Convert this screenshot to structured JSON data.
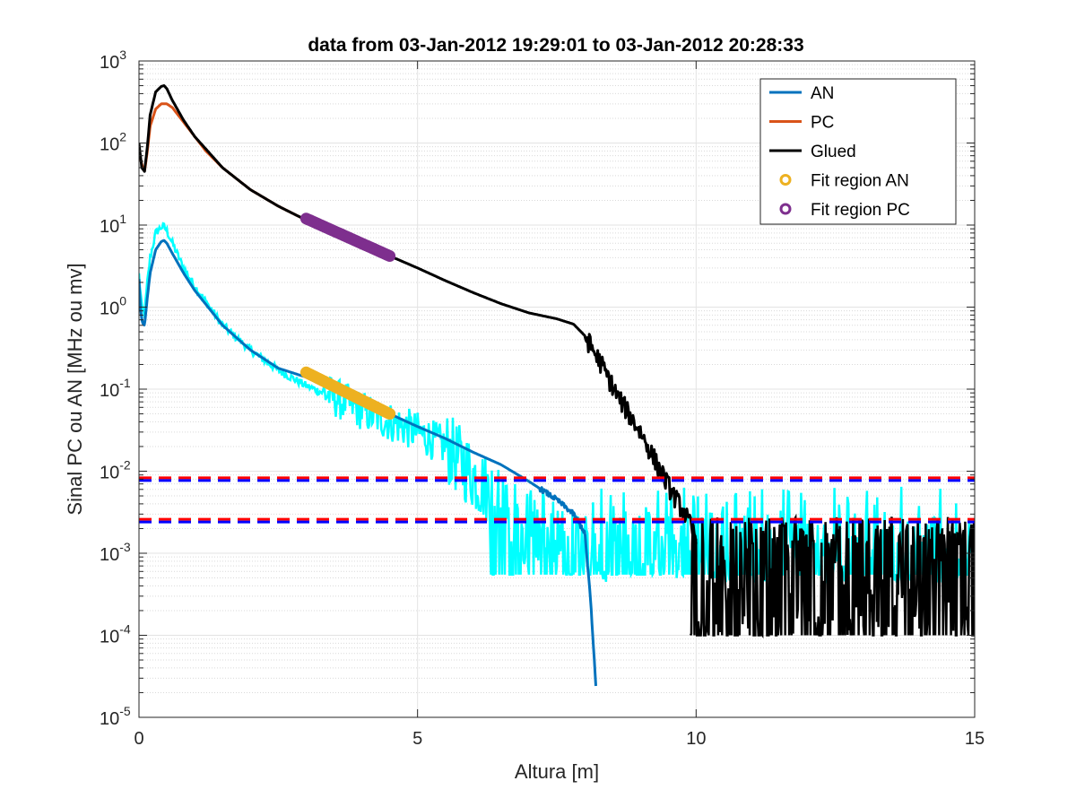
{
  "chart_data": {
    "type": "line",
    "title": "data from 03-Jan-2012 19:29:01 to 03-Jan-2012 20:28:33",
    "xlabel": "Altura [m]",
    "ylabel": "Sinal PC ou AN [MHz ou mv]",
    "xlim": [
      0,
      15
    ],
    "ylim": [
      1e-05,
      1000
    ],
    "yscale": "log",
    "grid": true,
    "minor_grid": true,
    "legend_position": "top-right",
    "x_ticks": [
      {
        "value": 0,
        "label": "0"
      },
      {
        "value": 5,
        "label": "5"
      },
      {
        "value": 10,
        "label": "10"
      },
      {
        "value": 15,
        "label": "15"
      }
    ],
    "y_ticks": [
      {
        "value": 1e-05,
        "base": "10",
        "exp": "-5"
      },
      {
        "value": 0.0001,
        "base": "10",
        "exp": "-4"
      },
      {
        "value": 0.001,
        "base": "10",
        "exp": "-3"
      },
      {
        "value": 0.01,
        "base": "10",
        "exp": "-2"
      },
      {
        "value": 0.1,
        "base": "10",
        "exp": "-1"
      },
      {
        "value": 1,
        "base": "10",
        "exp": "0"
      },
      {
        "value": 10,
        "base": "10",
        "exp": "1"
      },
      {
        "value": 100,
        "base": "10",
        "exp": "2"
      },
      {
        "value": 1000,
        "base": "10",
        "exp": "3"
      }
    ],
    "series": [
      {
        "name": "PC",
        "color": "#D95319",
        "style": "line",
        "x": [
          0.0,
          0.05,
          0.1,
          0.15,
          0.2,
          0.3,
          0.4,
          0.5,
          0.6,
          0.8,
          1.0,
          1.2,
          1.5,
          2.0,
          2.5,
          3.0,
          3.5,
          4.0,
          4.5
        ],
        "y": [
          80,
          55,
          45,
          80,
          160,
          260,
          300,
          300,
          270,
          180,
          120,
          80,
          50,
          27,
          17,
          11.5,
          8,
          5.5,
          4.2
        ]
      },
      {
        "name": "Glued",
        "color": "#000000",
        "style": "line",
        "x": [
          0.0,
          0.05,
          0.1,
          0.15,
          0.2,
          0.3,
          0.4,
          0.45,
          0.5,
          0.6,
          0.8,
          1.0,
          1.5,
          2.0,
          2.5,
          3.0,
          3.5,
          4.0,
          4.5,
          5.0,
          5.5,
          6.0,
          6.5,
          7.0,
          7.5,
          7.8,
          8.0,
          8.3,
          8.6,
          9.0,
          9.3,
          9.6,
          9.8,
          10.0
        ],
        "y": [
          100,
          50,
          45,
          90,
          220,
          420,
          490,
          500,
          460,
          330,
          190,
          120,
          50,
          27,
          17,
          11.5,
          8,
          5.5,
          4.2,
          3.0,
          2.1,
          1.5,
          1.1,
          0.85,
          0.72,
          0.62,
          0.45,
          0.2,
          0.08,
          0.03,
          0.012,
          0.005,
          0.003,
          0.0015
        ]
      },
      {
        "name": "AN",
        "color": "#0072BD",
        "style": "line",
        "x": [
          0.0,
          0.03,
          0.06,
          0.1,
          0.15,
          0.2,
          0.3,
          0.4,
          0.45,
          0.5,
          0.6,
          0.8,
          1.0,
          1.5,
          2.0,
          2.5,
          3.0,
          3.5,
          4.0,
          4.5,
          5.0,
          5.5,
          6.0,
          6.5,
          7.0,
          7.5,
          7.8,
          8.0,
          8.1,
          8.2
        ],
        "y": [
          2.2,
          0.9,
          0.65,
          0.6,
          1.3,
          2.6,
          5.0,
          6.3,
          6.5,
          6.0,
          4.5,
          2.6,
          1.6,
          0.6,
          0.3,
          0.18,
          0.14,
          0.1,
          0.07,
          0.05,
          0.035,
          0.025,
          0.017,
          0.012,
          0.0075,
          0.0045,
          0.003,
          0.0018,
          0.0003,
          2.5e-05
        ]
      },
      {
        "name": "",
        "color": "#00FFFF",
        "style": "noisy",
        "x": [
          0.0,
          0.05,
          0.1,
          0.15,
          0.2,
          0.3,
          0.4,
          0.45,
          0.5,
          0.6,
          0.8,
          1.0,
          1.5,
          2.0,
          2.5,
          3.0,
          3.5,
          4.0,
          4.5,
          5.0,
          5.5,
          6.0,
          6.5,
          7.0,
          7.5,
          8.0,
          9.0,
          10.0,
          11.0,
          12.0,
          13.0,
          14.0,
          15.0
        ],
        "y": [
          2.5,
          1.0,
          0.8,
          2.0,
          4.0,
          8.0,
          9.5,
          9.5,
          8.5,
          6.0,
          3.0,
          1.8,
          0.6,
          0.3,
          0.17,
          0.11,
          0.08,
          0.055,
          0.04,
          0.03,
          0.02,
          0.009,
          0.004,
          0.0018,
          0.0015,
          0.0012,
          0.0012,
          0.0012,
          0.0012,
          0.0012,
          0.0012,
          0.0012,
          0.0012
        ],
        "floor": 0.00055
      },
      {
        "name": "",
        "color": "#000000",
        "style": "noise-floor",
        "x_range": [
          9.9,
          15
        ],
        "y_min": 0.0001,
        "y_max": 0.0028
      }
    ],
    "fit_regions": [
      {
        "name": "Fit region AN",
        "color": "#EDB120",
        "x_range": [
          3.0,
          4.5
        ],
        "y_range": [
          0.16,
          0.05
        ]
      },
      {
        "name": "Fit region PC",
        "color": "#7E2F8E",
        "x_range": [
          3.0,
          4.5
        ],
        "y_range": [
          12,
          4.2
        ]
      }
    ],
    "threshold_lines": [
      {
        "y": 0.008,
        "color": "#FF0000",
        "style": "dashed"
      },
      {
        "y": 0.008,
        "color": "#0000FF",
        "style": "dashed"
      },
      {
        "y": 0.0025,
        "color": "#FF0000",
        "style": "dashed"
      },
      {
        "y": 0.0025,
        "color": "#0000FF",
        "style": "dashed"
      }
    ],
    "legend": [
      {
        "label": "AN",
        "color": "#0072BD",
        "marker": "line"
      },
      {
        "label": "PC",
        "color": "#D95319",
        "marker": "line"
      },
      {
        "label": "Glued",
        "color": "#000000",
        "marker": "line"
      },
      {
        "label": "Fit region AN",
        "color": "#EDB120",
        "marker": "circle"
      },
      {
        "label": "Fit region PC",
        "color": "#7E2F8E",
        "marker": "circle"
      }
    ]
  }
}
